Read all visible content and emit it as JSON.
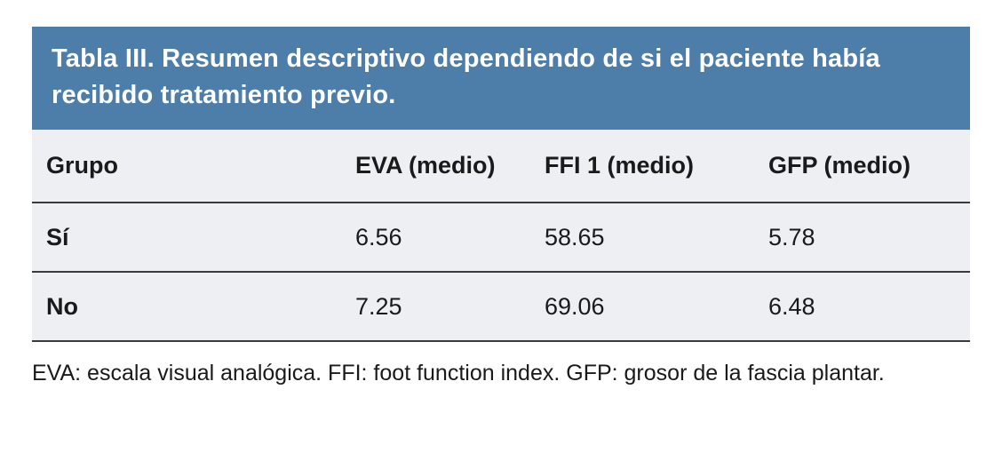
{
  "colors": {
    "header_bg": "#4d7da9",
    "header_text": "#ffffff",
    "table_bg": "#edeff3",
    "rule": "#3a3a3a",
    "body_text": "#1a1a1a"
  },
  "table": {
    "title": "Tabla III. Resumen descriptivo dependiendo de si el paciente había recibido tratamiento previo.",
    "headers": [
      "Grupo",
      "EVA (medio)",
      "FFI 1 (medio)",
      "GFP (medio)"
    ],
    "rows": [
      [
        "Sí",
        "6.56",
        "58.65",
        "5.78"
      ],
      [
        "No",
        "7.25",
        "69.06",
        "6.48"
      ]
    ],
    "footnote": "EVA: escala visual analógica. FFI: foot function index. GFP: grosor de la fascia plantar."
  },
  "chart_data": {
    "type": "table",
    "title": "Tabla III. Resumen descriptivo dependiendo de si el paciente había recibido tratamiento previo.",
    "columns": [
      "Grupo",
      "EVA (medio)",
      "FFI 1 (medio)",
      "GFP (medio)"
    ],
    "rows": [
      [
        "Sí",
        6.56,
        58.65,
        5.78
      ],
      [
        "No",
        7.25,
        69.06,
        6.48
      ]
    ],
    "footnote": "EVA: escala visual analógica. FFI: foot function index. GFP: grosor de la fascia plantar."
  }
}
